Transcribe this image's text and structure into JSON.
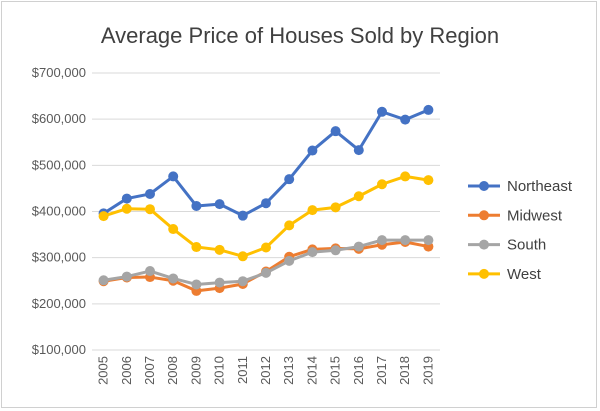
{
  "chart_data": {
    "type": "line",
    "title": "Average Price of Houses Sold by Region",
    "xlabel": "",
    "ylabel": "",
    "x": [
      "2005",
      "2006",
      "2007",
      "2008",
      "2009",
      "2010",
      "2011",
      "2012",
      "2013",
      "2014",
      "2015",
      "2016",
      "2017",
      "2018",
      "2019"
    ],
    "ylim": [
      100000,
      700000
    ],
    "yticks": [
      100000,
      200000,
      300000,
      400000,
      500000,
      600000,
      700000
    ],
    "ytick_labels": [
      "$100,000",
      "$200,000",
      "$300,000",
      "$400,000",
      "$500,000",
      "$600,000",
      "$700,000"
    ],
    "grid": true,
    "legend_position": "right",
    "series": [
      {
        "name": "Northeast",
        "color": "#4472C4",
        "values": [
          396000,
          428000,
          438000,
          476000,
          412000,
          416000,
          391000,
          418000,
          470000,
          532000,
          574000,
          533000,
          616000,
          599000,
          620000
        ]
      },
      {
        "name": "Midwest",
        "color": "#ED7D31",
        "values": [
          249000,
          257000,
          258000,
          250000,
          228000,
          234000,
          243000,
          270000,
          302000,
          318000,
          320000,
          319000,
          328000,
          334000,
          324000
        ]
      },
      {
        "name": "South",
        "color": "#A5A5A5",
        "values": [
          251000,
          259000,
          271000,
          255000,
          242000,
          246000,
          249000,
          267000,
          293000,
          312000,
          316000,
          324000,
          338000,
          338000,
          338000
        ]
      },
      {
        "name": "West",
        "color": "#FFC000",
        "values": [
          390000,
          406000,
          405000,
          362000,
          323000,
          317000,
          303000,
          322000,
          370000,
          403000,
          409000,
          433000,
          459000,
          476000,
          468000
        ]
      }
    ]
  }
}
